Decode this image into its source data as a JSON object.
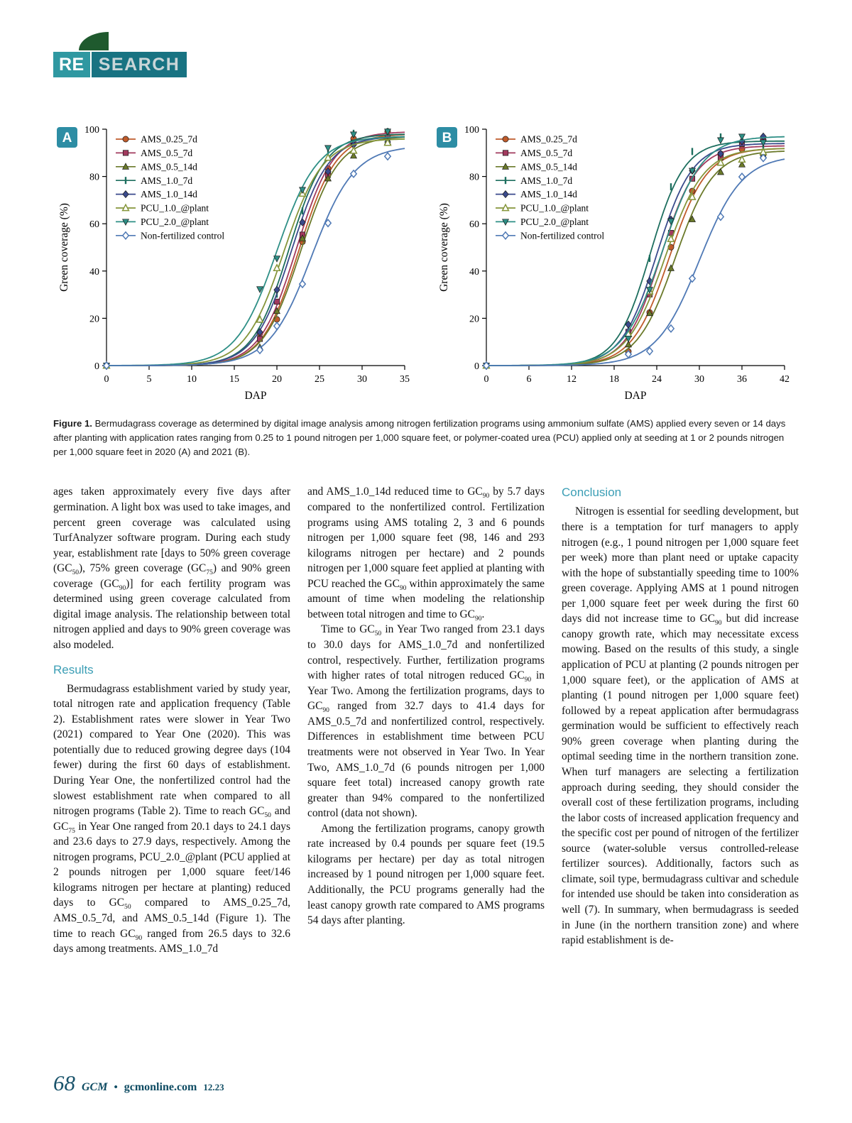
{
  "page": {
    "logo": {
      "re": "RE",
      "search": "SEARCH"
    },
    "footer": {
      "page_number": "68",
      "magazine": "GCM",
      "bullet": "•",
      "website": "gcmonline.com",
      "issue": "12.23"
    }
  },
  "figure_caption": {
    "label": "Figure 1.",
    "text": " Bermudagrass coverage as determined by digital image analysis among nitrogen fertilization programs using ammonium sulfate (AMS) applied every seven or 14 days after planting with application rates ranging from 0.25 to 1 pound nitrogen per 1,000 square feet, or polymer-coated urea (PCU) applied only at seeding at 1 or 2 pounds nitrogen per 1,000 square feet in 2020 (A) and 2021 (B)."
  },
  "chart_data": [
    {
      "type": "line",
      "panel": "A",
      "xlabel": "DAP",
      "ylabel": "Green coverage (%)",
      "xlim": [
        0,
        35
      ],
      "xticks": [
        0,
        5,
        10,
        15,
        20,
        25,
        30,
        35
      ],
      "ylim": [
        0,
        100
      ],
      "yticks": [
        0,
        20,
        40,
        60,
        80,
        100
      ],
      "legend_position": "top-left",
      "grid": false,
      "marker_x": [
        0,
        18,
        20,
        23,
        26,
        29,
        33
      ],
      "series": [
        {
          "name": "AMS_0.25_7d",
          "color": "#bf5b2b",
          "marker": "circle",
          "logistic": {
            "x0": 22.6,
            "k": 0.46,
            "ymax": 98
          }
        },
        {
          "name": "AMS_0.5_7d",
          "color": "#a23a5e",
          "marker": "square",
          "logistic": {
            "x0": 22.3,
            "k": 0.46,
            "ymax": 99
          }
        },
        {
          "name": "AMS_0.5_14d",
          "color": "#6b7a2a",
          "marker": "triangle",
          "logistic": {
            "x0": 22.8,
            "k": 0.45,
            "ymax": 97
          }
        },
        {
          "name": "AMS_1.0_7d",
          "color": "#1d6e5e",
          "marker": "vtick",
          "logistic": {
            "x0": 21.4,
            "k": 0.47,
            "ymax": 98
          }
        },
        {
          "name": "AMS_1.0_14d",
          "color": "#3a4a8c",
          "marker": "diamond",
          "logistic": {
            "x0": 21.7,
            "k": 0.46,
            "ymax": 97
          }
        },
        {
          "name": "PCU_1.0_@plant",
          "color": "#85953a",
          "marker": "triangle-open",
          "logistic": {
            "x0": 20.8,
            "k": 0.44,
            "ymax": 96
          }
        },
        {
          "name": "PCU_2.0_@plant",
          "color": "#2e8f86",
          "marker": "triangle-down",
          "logistic": {
            "x0": 20.0,
            "k": 0.42,
            "ymax": 97
          }
        },
        {
          "name": "Non-fertilized control",
          "color": "#4f79b5",
          "marker": "diamond-open",
          "logistic": {
            "x0": 24.1,
            "k": 0.4,
            "ymax": 93
          }
        }
      ]
    },
    {
      "type": "line",
      "panel": "B",
      "xlabel": "DAP",
      "ylabel": "Green coverage (%)",
      "xlim": [
        0,
        42
      ],
      "xticks": [
        0,
        6,
        12,
        18,
        24,
        30,
        36,
        42
      ],
      "ylim": [
        0,
        100
      ],
      "yticks": [
        0,
        20,
        40,
        60,
        80,
        100
      ],
      "legend_position": "top-left",
      "grid": false,
      "marker_x": [
        0,
        20,
        23,
        26,
        29,
        33,
        36,
        39
      ],
      "series": [
        {
          "name": "AMS_0.25_7d",
          "color": "#bf5b2b",
          "marker": "circle",
          "logistic": {
            "x0": 25.8,
            "k": 0.38,
            "ymax": 92
          }
        },
        {
          "name": "AMS_0.5_7d",
          "color": "#a23a5e",
          "marker": "square",
          "logistic": {
            "x0": 24.6,
            "k": 0.4,
            "ymax": 93
          }
        },
        {
          "name": "AMS_0.5_14d",
          "color": "#6b7a2a",
          "marker": "triangle",
          "logistic": {
            "x0": 26.6,
            "k": 0.37,
            "ymax": 91
          }
        },
        {
          "name": "AMS_1.0_7d",
          "color": "#1d6e5e",
          "marker": "vtick",
          "logistic": {
            "x0": 23.1,
            "k": 0.42,
            "ymax": 95
          }
        },
        {
          "name": "AMS_1.0_14d",
          "color": "#3a4a8c",
          "marker": "diamond",
          "logistic": {
            "x0": 24.0,
            "k": 0.4,
            "ymax": 94
          }
        },
        {
          "name": "PCU_1.0_@plant",
          "color": "#85953a",
          "marker": "triangle-open",
          "logistic": {
            "x0": 25.2,
            "k": 0.37,
            "ymax": 92
          }
        },
        {
          "name": "PCU_2.0_@plant",
          "color": "#2e8f86",
          "marker": "triangle-down",
          "logistic": {
            "x0": 24.8,
            "k": 0.36,
            "ymax": 97
          }
        },
        {
          "name": "Non-fertilized control",
          "color": "#4f79b5",
          "marker": "diamond-open",
          "logistic": {
            "x0": 30.0,
            "k": 0.33,
            "ymax": 89
          }
        }
      ]
    }
  ],
  "article": {
    "columns": [
      {
        "blocks": [
          {
            "type": "p",
            "indent": false,
            "text": "ages taken approximately every five days after germination. A light box was used to take images, and percent green coverage was calculated using TurfAnalyzer software program. During each study year, establishment rate [days to 50% green coverage (GC_{50}), 75% green coverage (GC_{75}) and 90% green coverage (GC_{90})] for each fertility program was determined using green coverage calculated from digital image analysis. The relationship between total nitrogen applied and days to 90% green coverage was also modeled."
          },
          {
            "type": "h",
            "text": "Results"
          },
          {
            "type": "p",
            "indent": true,
            "text": "Bermudagrass establishment varied by study year, total nitrogen rate and application frequency (Table 2). Establishment rates were slower in Year Two (2021) compared to Year One (2020). This was potentially due to reduced growing degree days (104 fewer) during the first 60 days of establishment. During Year One, the nonfertilized control had the slowest establishment rate when compared to all nitrogen programs (Table 2). Time to reach GC_{50} and GC_{75} in Year One ranged from 20.1 days to 24.1 days and 23.6 days to 27.9 days, respectively. Among the nitrogen programs, PCU_2.0_@plant (PCU applied at 2 pounds nitrogen per 1,000 square feet/146 kilograms nitrogen per hectare at planting) reduced days to GC_{50} compared to AMS_0.25_7d, AMS_0.5_7d, and AMS_0.5_14d (Figure 1). The time to reach GC_{90} ranged from 26.5 days to 32.6 days among treatments. AMS_1.0_7d"
          }
        ]
      },
      {
        "blocks": [
          {
            "type": "p",
            "indent": false,
            "text": "and AMS_1.0_14d reduced time to GC_{90} by 5.7 days compared to the nonfertilized control. Fertilization programs using AMS totaling 2, 3 and 6 pounds nitrogen per 1,000 square feet (98, 146 and 293 kilograms nitrogen per hectare) and 2 pounds nitrogen per 1,000 square feet applied at planting with PCU reached the GC_{90} within approximately the same amount of time when modeling the relationship between total nitrogen and time to GC_{90}."
          },
          {
            "type": "p",
            "indent": true,
            "text": "Time to GC_{50} in Year Two ranged from 23.1 days to 30.0 days for AMS_1.0_7d and nonfertilized control, respectively. Further, fertilization programs with higher rates of total nitrogen reduced GC_{90} in Year Two. Among the fertilization programs, days to GC_{90} ranged from 32.7 days to 41.4 days for AMS_0.5_7d and nonfertilized control, respectively. Differences in establishment time between PCU treatments were not observed in Year Two. In Year Two, AMS_1.0_7d (6 pounds nitrogen per 1,000 square feet total) increased canopy growth rate greater than 94% compared to the nonfertilized control (data not shown)."
          },
          {
            "type": "p",
            "indent": true,
            "text": "Among the fertilization programs, canopy growth rate increased by 0.4 pounds per square feet (19.5 kilograms per hectare) per day as total nitrogen increased by 1 pound nitrogen per 1,000 square feet. Additionally, the PCU programs generally had the least canopy growth rate compared to AMS programs 54 days after planting."
          }
        ]
      },
      {
        "blocks": [
          {
            "type": "h",
            "text": "Conclusion"
          },
          {
            "type": "p",
            "indent": true,
            "text": "Nitrogen is essential for seedling development, but there is a temptation for turf managers to apply nitrogen (e.g., 1 pound nitrogen per 1,000 square feet per week) more than plant need or uptake capacity with the hope of substantially speeding time to 100% green coverage. Applying AMS at 1 pound nitrogen per 1,000 square feet per week during the first 60 days did not increase time to GC_{90} but did increase canopy growth rate, which may necessitate excess mowing. Based on the results of this study, a single application of PCU at planting (2 pounds nitrogen per 1,000 square feet), or the application of AMS at planting (1 pound nitrogen per 1,000 square feet) followed by a repeat application after bermudagrass germination would be sufficient to effectively reach 90% green coverage when planting during the optimal seeding time in the northern transition zone. When turf managers are selecting a fertilization approach during seeding, they should consider the overall cost of these fertilization programs, including the labor costs of increased application frequency and the specific cost per pound of nitrogen of the fertilizer source (water-soluble versus controlled-release fertilizer sources). Additionally, factors such as climate, soil type, bermudagrass cultivar and schedule for intended use should be taken into consideration as well (7). In summary, when bermudagrass is seeded in June (in the northern transition zone) and where rapid establishment is de-"
          }
        ]
      }
    ]
  }
}
